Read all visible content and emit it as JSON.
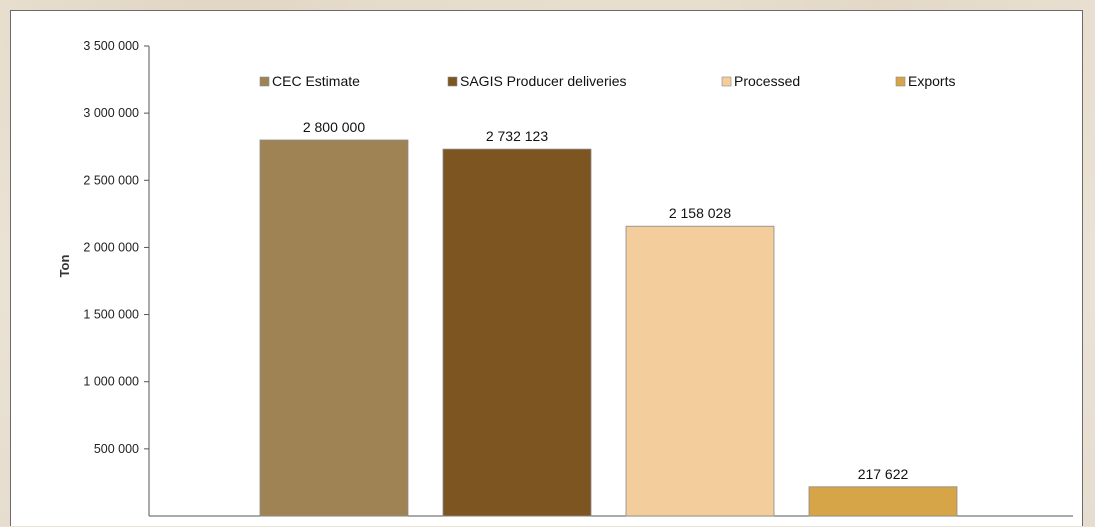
{
  "chart_data": {
    "type": "bar",
    "title": "",
    "xlabel": "",
    "ylabel": "Ton",
    "ylim": [
      0,
      3500000
    ],
    "yticks": [
      500000,
      1000000,
      1500000,
      2000000,
      2500000,
      3000000,
      3500000
    ],
    "ytick_labels": [
      "500 000",
      "1 000 000",
      "1 500 000",
      "2 000 000",
      "2 500 000",
      "3 000 000",
      "3 500 000"
    ],
    "legend_position": "top",
    "grid": false,
    "series": [
      {
        "name": "CEC Estimate",
        "value": 2800000,
        "label": "2 800 000",
        "color": "#a08355"
      },
      {
        "name": "SAGIS Producer deliveries",
        "value": 2732123,
        "label": "2 732 123",
        "color": "#7d5520"
      },
      {
        "name": "Processed",
        "value": 2158028,
        "label": "2 158 028",
        "color": "#f3cd9b"
      },
      {
        "name": "Exports",
        "value": 217622,
        "label": "217 622",
        "color": "#d6a548"
      }
    ]
  }
}
